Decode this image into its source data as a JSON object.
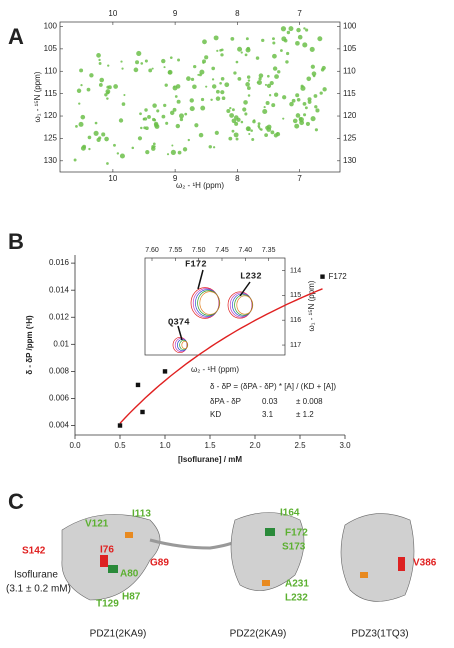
{
  "panel_a": {
    "label": "A",
    "x_label": "ω₂ - ¹H (ppm)",
    "y_label": "ω₁ - ¹⁵N (ppm)",
    "xlim": [
      10.85,
      6.35
    ],
    "xticks": [
      10,
      9,
      8,
      7
    ],
    "ylim": [
      99,
      132.5
    ],
    "yticks": [
      100,
      105,
      110,
      115,
      120,
      125,
      130
    ]
  },
  "panel_b": {
    "label": "B",
    "chart_data": {
      "type": "scatter",
      "x_label": "[Isoflurane] / mM",
      "y_label": "δ - δP /ppm (¹H)",
      "x": [
        0.5,
        0.7,
        0.75,
        1.0,
        2.75
      ],
      "values": [
        0.004,
        0.007,
        0.005,
        0.008,
        0.015
      ],
      "color": "#111111",
      "point_label": "F172",
      "fit_color": "#e02020",
      "xlim": [
        0,
        3.0
      ],
      "xticks": [
        {
          "value": 0,
          "label": "0.0"
        },
        0.5,
        {
          "value": 1,
          "label": "1.0"
        },
        1.5,
        {
          "value": 2,
          "label": "2.0"
        },
        2.5,
        {
          "value": 3,
          "label": "3.0"
        }
      ],
      "ylim": [
        0.0033,
        0.0166
      ],
      "yticks": [
        0.004,
        0.006,
        0.008,
        0.01,
        0.012,
        0.014,
        0.016
      ],
      "equation": "δ - δP = (δPA - δP) * [A] / (KD + [A])",
      "fit_params": [
        {
          "name": "δPA - δP",
          "value": 0.03,
          "error": "± 0.008"
        },
        {
          "name": "KD",
          "value": 3.1,
          "error": "± 1.2"
        }
      ]
    },
    "inset": {
      "x_label": "ω₂ - ¹H (ppm)",
      "y_label": "ω₁ - ¹⁵N (ppm)",
      "xlim": [
        7.615,
        7.315
      ],
      "xticks": [
        {
          "value": 7.6,
          "label": "7.60"
        },
        7.55,
        {
          "value": 7.5,
          "label": "7.50"
        },
        7.45,
        {
          "value": 7.4,
          "label": "7.40"
        },
        7.35
      ],
      "ylim": [
        113.5,
        117.4
      ],
      "yticks": [
        114,
        115,
        116,
        117
      ],
      "peaks": [
        "F172",
        "L232",
        "Q374"
      ]
    }
  },
  "panel_c": {
    "label": "C",
    "ligand": "Isoflurane",
    "ligand_conc": "(3.1 ± 0.2 mM)",
    "captions": [
      "PDZ1(2KA9)",
      "PDZ2(2KA9)",
      "PDZ3(1TQ3)"
    ],
    "residues": [
      {
        "text": "S142",
        "color": "#e02020"
      },
      {
        "text": "V121",
        "color": "#5bb030"
      },
      {
        "text": "I113",
        "color": "#5bb030"
      },
      {
        "text": "I76",
        "color": "#e02020"
      },
      {
        "text": "A80",
        "color": "#5bb030"
      },
      {
        "text": "G89",
        "color": "#e02020"
      },
      {
        "text": "T129",
        "color": "#5bb030"
      },
      {
        "text": "H87",
        "color": "#5bb030"
      },
      {
        "text": "I164",
        "color": "#5bb030"
      },
      {
        "text": "F172",
        "color": "#5bb030"
      },
      {
        "text": "S173",
        "color": "#5bb030"
      },
      {
        "text": "A231",
        "color": "#5bb030"
      },
      {
        "text": "L232",
        "color": "#5bb030"
      },
      {
        "text": "V386",
        "color": "#e02020"
      }
    ]
  }
}
